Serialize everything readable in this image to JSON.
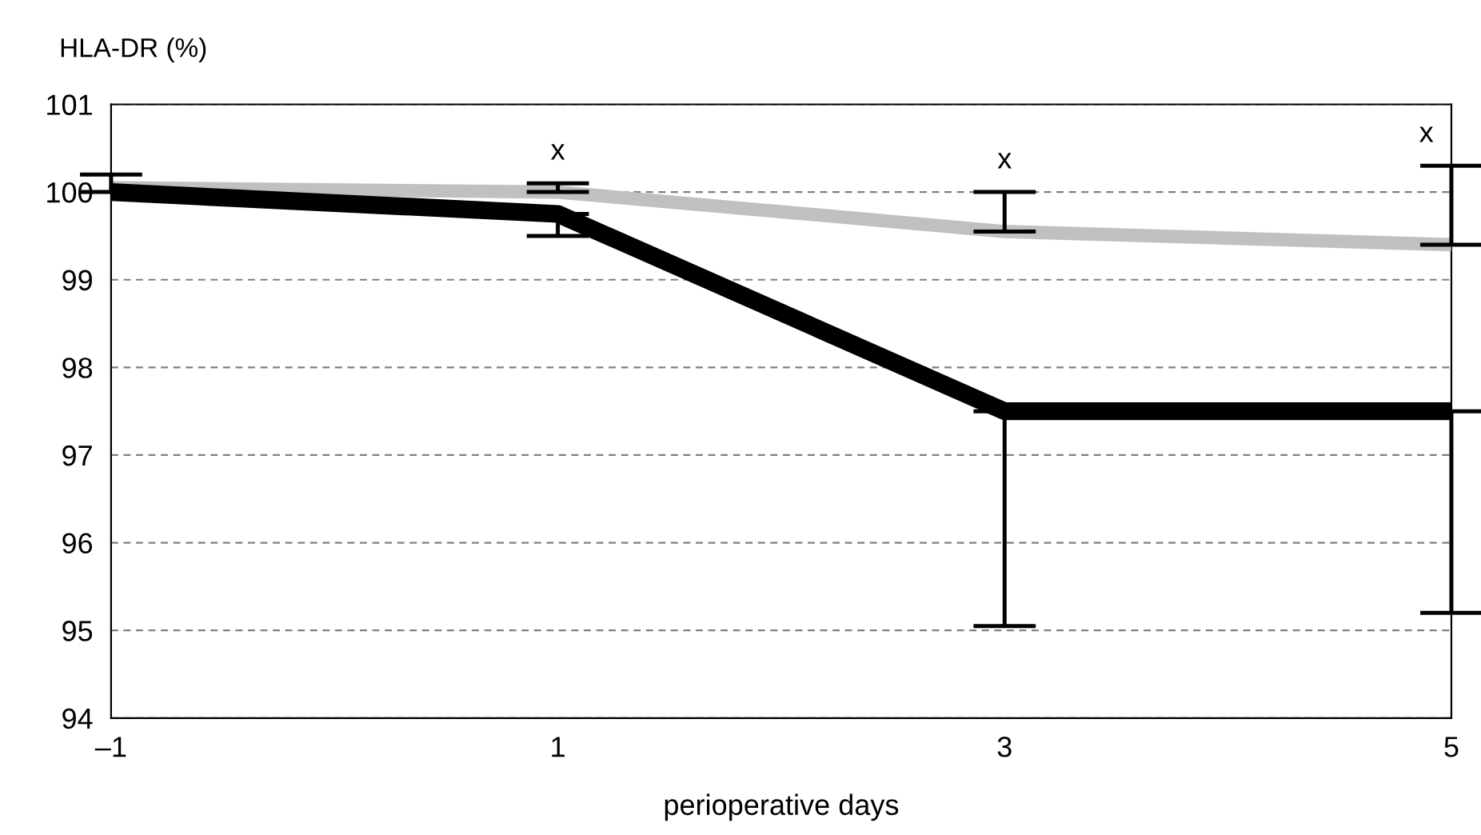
{
  "chart_data": {
    "type": "line",
    "ylabel": "HLA-DR (%)",
    "xlabel": "perioperative days",
    "x": [
      -1,
      1,
      3,
      5
    ],
    "xlim": [
      -1,
      5
    ],
    "xticks": [
      {
        "value": -1,
        "label": "–1"
      },
      1,
      3,
      5
    ],
    "ylim": [
      94,
      101
    ],
    "yticks": [
      94,
      95,
      96,
      97,
      98,
      99,
      100,
      101
    ],
    "grid": "y",
    "legend": false,
    "marker": "none",
    "line_style": "solid",
    "series": [
      {
        "color": "#c0c0c0",
        "values": [
          100.05,
          100.0,
          99.55,
          99.4
        ],
        "errors": [
          null,
          [
            100.0,
            100.1
          ],
          [
            99.55,
            100.0
          ],
          [
            99.4,
            100.3
          ]
        ]
      },
      {
        "color": "#000000",
        "values": [
          100.0,
          99.75,
          97.5,
          97.5
        ],
        "errors": [
          [
            100.0,
            100.2
          ],
          [
            99.5,
            99.75
          ],
          [
            95.05,
            97.5
          ],
          [
            95.2,
            97.5
          ]
        ]
      }
    ],
    "annotations": [
      "x",
      "x",
      "x"
    ]
  }
}
